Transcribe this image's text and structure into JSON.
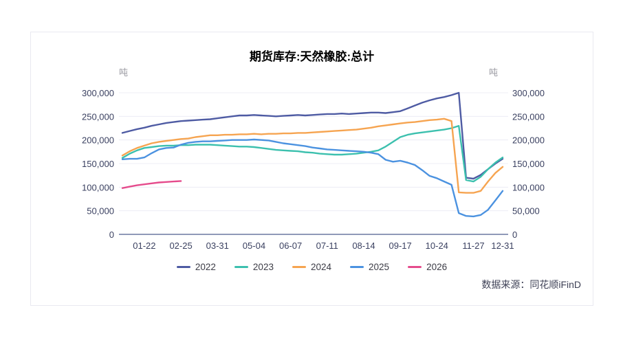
{
  "chart": {
    "title": "期货库存:天然橡胶:总计",
    "unit_left": "吨",
    "unit_right": "吨",
    "source": "数据来源：同花顺iFinD"
  },
  "chart_data": {
    "type": "line",
    "title": "期货库存:天然橡胶:总计",
    "unit": "吨",
    "grid": true,
    "legend_position": "bottom",
    "ylim": [
      0,
      300000
    ],
    "y_ticks": [
      0,
      50000,
      100000,
      150000,
      200000,
      250000,
      300000
    ],
    "x_tick_labels": [
      "01-22",
      "02-25",
      "03-31",
      "05-04",
      "06-07",
      "07-11",
      "08-14",
      "09-17",
      "10-24",
      "11-27",
      "12-31"
    ],
    "x_tick_weeks": [
      3,
      8,
      13,
      18,
      23,
      28,
      33,
      38,
      43,
      48,
      52
    ],
    "weeks_span": 52,
    "axis_color": "#8f99b8",
    "gridline_color": "#ececf4",
    "series": [
      {
        "name": "2022",
        "color": "#4e5ba3",
        "values": [
          215000,
          219000,
          223000,
          226000,
          230000,
          233000,
          236000,
          238000,
          240000,
          241000,
          242000,
          243000,
          244000,
          246000,
          248000,
          250000,
          252000,
          252000,
          253000,
          252000,
          251000,
          250000,
          251000,
          252000,
          253000,
          252000,
          253000,
          254000,
          255000,
          255000,
          256000,
          255000,
          256000,
          257000,
          258000,
          258000,
          257000,
          259000,
          261000,
          267000,
          273000,
          279000,
          284000,
          288000,
          291000,
          295000,
          300000,
          120000,
          118000,
          126000,
          138000,
          150000,
          160000
        ]
      },
      {
        "name": "2023",
        "color": "#3cc0ae",
        "values": [
          162000,
          171000,
          178000,
          183000,
          185000,
          187000,
          188000,
          188000,
          189000,
          189000,
          190000,
          190000,
          190000,
          189000,
          188000,
          187000,
          186000,
          186000,
          185000,
          183000,
          181000,
          179000,
          178000,
          177000,
          176000,
          174000,
          173000,
          171000,
          170000,
          169000,
          169000,
          170000,
          171000,
          173000,
          175000,
          178000,
          186000,
          196000,
          206000,
          211000,
          214000,
          216000,
          218000,
          220000,
          222000,
          225000,
          230000,
          115000,
          112000,
          122000,
          138000,
          152000,
          163000
        ]
      },
      {
        "name": "2024",
        "color": "#f6a450",
        "values": [
          167000,
          176000,
          183000,
          188000,
          193000,
          196000,
          198000,
          200000,
          202000,
          203000,
          206000,
          208000,
          210000,
          210000,
          211000,
          211000,
          212000,
          212000,
          213000,
          212000,
          213000,
          213000,
          214000,
          214000,
          215000,
          215000,
          216000,
          217000,
          218000,
          219000,
          220000,
          221000,
          222000,
          224000,
          226000,
          229000,
          231000,
          233000,
          235000,
          237000,
          238000,
          240000,
          242000,
          243000,
          245000,
          240000,
          89000,
          88000,
          88000,
          92000,
          112000,
          130000,
          143000
        ]
      },
      {
        "name": "2025",
        "color": "#4b92e0",
        "values": [
          159000,
          160000,
          160000,
          163000,
          172000,
          180000,
          183000,
          184000,
          190000,
          194000,
          196000,
          197000,
          197000,
          198000,
          199000,
          200000,
          200000,
          200000,
          201000,
          200000,
          199000,
          196000,
          193000,
          191000,
          189000,
          187000,
          184000,
          182000,
          180000,
          179000,
          178000,
          177000,
          176000,
          175000,
          173000,
          170000,
          158000,
          154000,
          156000,
          152000,
          147000,
          136000,
          124000,
          119000,
          112000,
          105000,
          45000,
          39000,
          38000,
          41000,
          52000,
          72000,
          92000
        ]
      },
      {
        "name": "2026",
        "color": "#e54b8c",
        "values": [
          98000,
          101000,
          104000,
          106000,
          108000,
          110000,
          111000,
          112000,
          113000
        ]
      }
    ]
  }
}
